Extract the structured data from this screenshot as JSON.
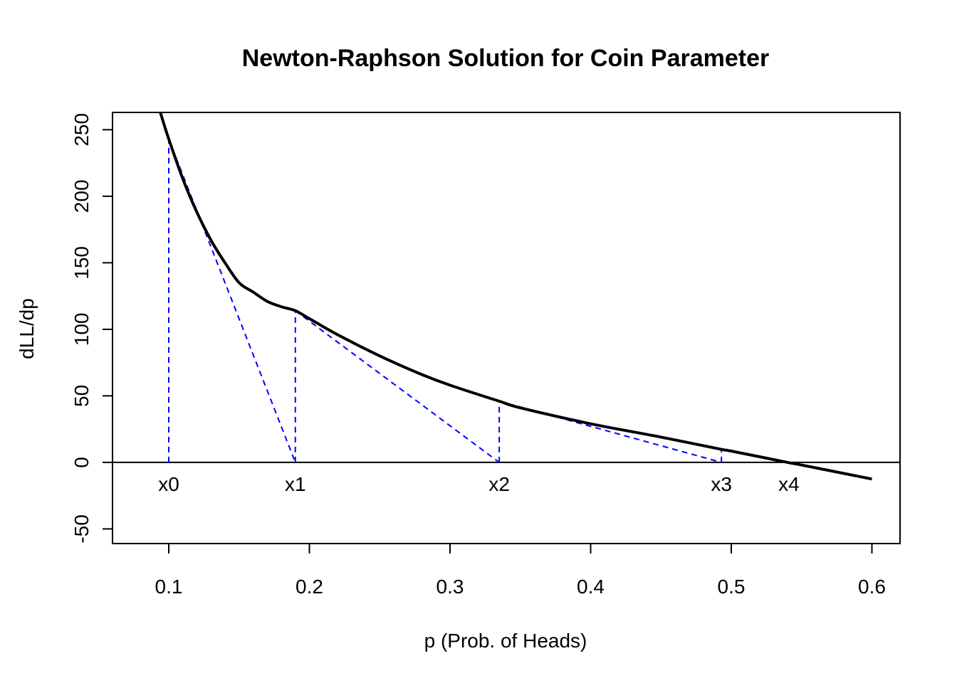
{
  "chart_data": {
    "type": "line",
    "title": "Newton-Raphson Solution for Coin Parameter",
    "xlabel": "p (Prob. of Heads)",
    "ylabel": "dLL/dp",
    "xlim": [
      0.06,
      0.62
    ],
    "ylim": [
      -61,
      263
    ],
    "x_ticks": [
      0.1,
      0.2,
      0.3,
      0.4,
      0.5,
      0.6
    ],
    "x_tick_labels": [
      "0.1",
      "0.2",
      "0.3",
      "0.4",
      "0.5",
      "0.6"
    ],
    "y_ticks": [
      -50,
      0,
      50,
      100,
      150,
      200,
      250
    ],
    "y_tick_labels": [
      "-50",
      "0",
      "50",
      "100",
      "150",
      "200",
      "250"
    ],
    "grid": false,
    "legend": "none",
    "curve": {
      "color": "#000000",
      "points": [
        [
          0.094,
          263
        ],
        [
          0.1,
          243
        ],
        [
          0.11,
          213
        ],
        [
          0.12,
          188
        ],
        [
          0.13,
          167
        ],
        [
          0.14,
          150
        ],
        [
          0.15,
          135
        ],
        [
          0.16,
          128
        ],
        [
          0.17,
          121
        ],
        [
          0.18,
          117
        ],
        [
          0.19,
          114
        ],
        [
          0.2,
          108
        ],
        [
          0.22,
          96
        ],
        [
          0.25,
          80
        ],
        [
          0.28,
          66
        ],
        [
          0.3,
          58
        ],
        [
          0.335,
          46
        ],
        [
          0.35,
          41
        ],
        [
          0.4,
          29
        ],
        [
          0.45,
          19
        ],
        [
          0.492,
          10
        ],
        [
          0.5,
          8.5
        ],
        [
          0.54,
          0
        ],
        [
          0.55,
          -2
        ],
        [
          0.6,
          -12.5
        ]
      ]
    },
    "zero_line": {
      "y": 0,
      "color": "#000000"
    },
    "iterations": {
      "color": "#0000ff",
      "points": [
        {
          "label": "x0",
          "x": 0.1,
          "y": 243
        },
        {
          "label": "x1",
          "x": 0.19,
          "y": 114
        },
        {
          "label": "x2",
          "x": 0.335,
          "y": 46
        },
        {
          "label": "x3",
          "x": 0.493,
          "y": 10
        },
        {
          "label": "x4",
          "x": 0.541,
          "y": 0
        }
      ]
    }
  }
}
